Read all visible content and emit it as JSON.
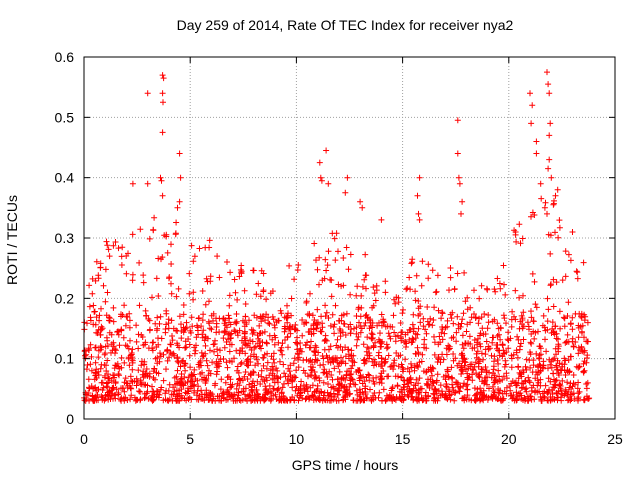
{
  "chart_data": {
    "type": "scatter",
    "title": "Day 259 of 2014, Rate Of TEC Index for receiver nya2",
    "xlabel": "GPS time / hours",
    "ylabel": "ROTI / TECUs",
    "xlim": [
      0,
      25
    ],
    "ylim": [
      0,
      0.6
    ],
    "xticks": [
      0,
      5,
      10,
      15,
      20,
      25
    ],
    "yticks": [
      0,
      0.1,
      0.2,
      0.3,
      0.4,
      0.5,
      0.6
    ],
    "xtick_labels": [
      "0",
      "5",
      "10",
      "15",
      "20",
      "25"
    ],
    "ytick_labels": [
      "0",
      "0.1",
      "0.2",
      "0.3",
      "0.4",
      "0.5",
      "0.6"
    ],
    "grid": true,
    "marker": "+",
    "color": "#ff0000",
    "x_range_of_data": [
      0,
      23.8
    ],
    "series": [
      {
        "name": "ROTI",
        "background_band": [
          0.03,
          0.2
        ],
        "activity_profile": [
          {
            "x": 0.0,
            "peak": 0.24
          },
          {
            "x": 1.0,
            "peak": 0.3
          },
          {
            "x": 2.0,
            "peak": 0.3
          },
          {
            "x": 3.0,
            "peak": 0.33
          },
          {
            "x": 3.8,
            "peak": 0.36
          },
          {
            "x": 5.0,
            "peak": 0.3
          },
          {
            "x": 6.0,
            "peak": 0.3
          },
          {
            "x": 7.0,
            "peak": 0.26
          },
          {
            "x": 8.0,
            "peak": 0.25
          },
          {
            "x": 9.0,
            "peak": 0.25
          },
          {
            "x": 10.0,
            "peak": 0.28
          },
          {
            "x": 11.0,
            "peak": 0.3
          },
          {
            "x": 12.0,
            "peak": 0.32
          },
          {
            "x": 13.0,
            "peak": 0.3
          },
          {
            "x": 14.0,
            "peak": 0.25
          },
          {
            "x": 15.0,
            "peak": 0.27
          },
          {
            "x": 16.0,
            "peak": 0.27
          },
          {
            "x": 17.0,
            "peak": 0.25
          },
          {
            "x": 18.0,
            "peak": 0.27
          },
          {
            "x": 19.0,
            "peak": 0.22
          },
          {
            "x": 20.0,
            "peak": 0.31
          },
          {
            "x": 21.0,
            "peak": 0.34
          },
          {
            "x": 21.9,
            "peak": 0.4
          },
          {
            "x": 23.0,
            "peak": 0.26
          },
          {
            "x": 23.8,
            "peak": 0.28
          }
        ],
        "outliers": [
          [
            3.0,
            0.54
          ],
          [
            3.7,
            0.57
          ],
          [
            3.75,
            0.565
          ],
          [
            3.7,
            0.54
          ],
          [
            3.72,
            0.525
          ],
          [
            3.7,
            0.475
          ],
          [
            3.6,
            0.4
          ],
          [
            3.65,
            0.395
          ],
          [
            3.7,
            0.37
          ],
          [
            4.5,
            0.44
          ],
          [
            4.55,
            0.4
          ],
          [
            2.3,
            0.39
          ],
          [
            3.0,
            0.39
          ],
          [
            4.5,
            0.36
          ],
          [
            4.4,
            0.35
          ],
          [
            11.4,
            0.445
          ],
          [
            11.1,
            0.425
          ],
          [
            11.15,
            0.4
          ],
          [
            11.2,
            0.395
          ],
          [
            11.5,
            0.39
          ],
          [
            12.4,
            0.4
          ],
          [
            12.3,
            0.375
          ],
          [
            13.0,
            0.36
          ],
          [
            13.1,
            0.35
          ],
          [
            15.8,
            0.4
          ],
          [
            15.7,
            0.37
          ],
          [
            15.75,
            0.34
          ],
          [
            15.8,
            0.33
          ],
          [
            14.0,
            0.33
          ],
          [
            17.6,
            0.495
          ],
          [
            17.6,
            0.44
          ],
          [
            17.65,
            0.4
          ],
          [
            17.7,
            0.39
          ],
          [
            17.8,
            0.36
          ],
          [
            17.75,
            0.34
          ],
          [
            21.0,
            0.54
          ],
          [
            21.1,
            0.52
          ],
          [
            21.05,
            0.49
          ],
          [
            21.3,
            0.46
          ],
          [
            21.3,
            0.44
          ],
          [
            21.8,
            0.575
          ],
          [
            21.85,
            0.555
          ],
          [
            21.9,
            0.54
          ],
          [
            21.95,
            0.49
          ],
          [
            21.9,
            0.47
          ],
          [
            21.9,
            0.43
          ],
          [
            21.85,
            0.415
          ],
          [
            22.0,
            0.4
          ],
          [
            21.5,
            0.39
          ],
          [
            22.3,
            0.38
          ],
          [
            22.2,
            0.37
          ],
          [
            22.1,
            0.355
          ],
          [
            21.7,
            0.35
          ],
          [
            21.8,
            0.34
          ],
          [
            23.0,
            0.31
          ]
        ]
      }
    ]
  }
}
